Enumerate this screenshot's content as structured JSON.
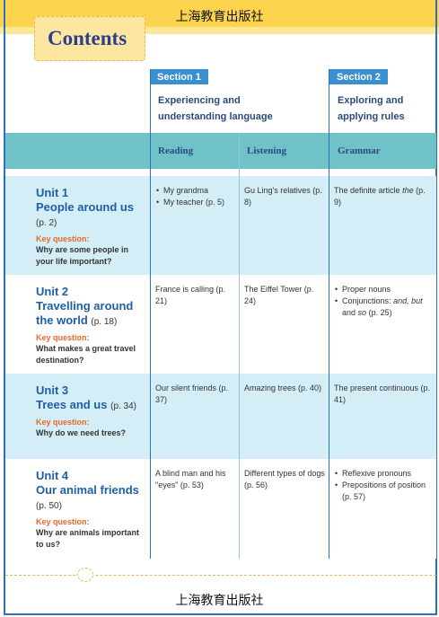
{
  "header": {
    "publisher": "上海教育出版社",
    "title": "Contents"
  },
  "sections": [
    {
      "label": "Section 1",
      "subtitle": "Experiencing and understanding language"
    },
    {
      "label": "Section 2",
      "subtitle": "Exploring and applying rules"
    }
  ],
  "columns": [
    "Reading",
    "Listening",
    "Grammar"
  ],
  "units": [
    {
      "unit": "Unit 1",
      "name": "People around us",
      "page": "(p. 2)",
      "key_label": "Key question:",
      "question": "Why are some people in your life important?",
      "cells": [
        {
          "items": [
            "My grandma",
            "My teacher (p. 5)"
          ]
        },
        {
          "text": [
            "Gu Ling's relatives (p. 8)"
          ]
        },
        {
          "text": [
            "The definite article",
            {
              "text": "the",
              "italic": true
            },
            "(p. 9)"
          ]
        }
      ]
    },
    {
      "unit": "Unit 2",
      "name": "Travelling around the world",
      "page": "(p. 18)",
      "key_label": "Key question:",
      "question": "What makes a great travel destination?",
      "cells": [
        {
          "text": [
            "France is calling (p. 21)"
          ]
        },
        {
          "text": [
            "The Eiffel Tower (p. 24)"
          ]
        },
        {
          "items": [
            "Proper nouns",
            [
              "Conjunctions:",
              {
                "text": "and,",
                "italic": true
              },
              {
                "text": "but",
                "italic": true
              },
              "and",
              {
                "text": "so",
                "italic": true
              },
              "(p. 25)"
            ]
          ]
        }
      ]
    },
    {
      "unit": "Unit 3",
      "name": "Trees and us",
      "page": "(p. 34)",
      "key_label": "Key question:",
      "question": "Why do we need trees?",
      "cells": [
        {
          "text": [
            "Our silent friends (p. 37)"
          ]
        },
        {
          "text": [
            "Amazing trees (p. 40)"
          ]
        },
        {
          "text": [
            "The present continuous (p. 41)"
          ]
        }
      ]
    },
    {
      "unit": "Unit 4",
      "name": "Our animal friends",
      "page": "(p. 50)",
      "key_label": "Key question:",
      "question": "Why are animals important to us?",
      "cells": [
        {
          "text": [
            "A blind man and his \"eyes\" (p. 53)"
          ]
        },
        {
          "text": [
            "Different types of dogs (p. 56)"
          ]
        },
        {
          "items": [
            "Reflexive pronouns",
            "Prepositions of position (p. 57)"
          ]
        }
      ]
    }
  ],
  "footer": {
    "publisher": "上海教育出版社"
  }
}
